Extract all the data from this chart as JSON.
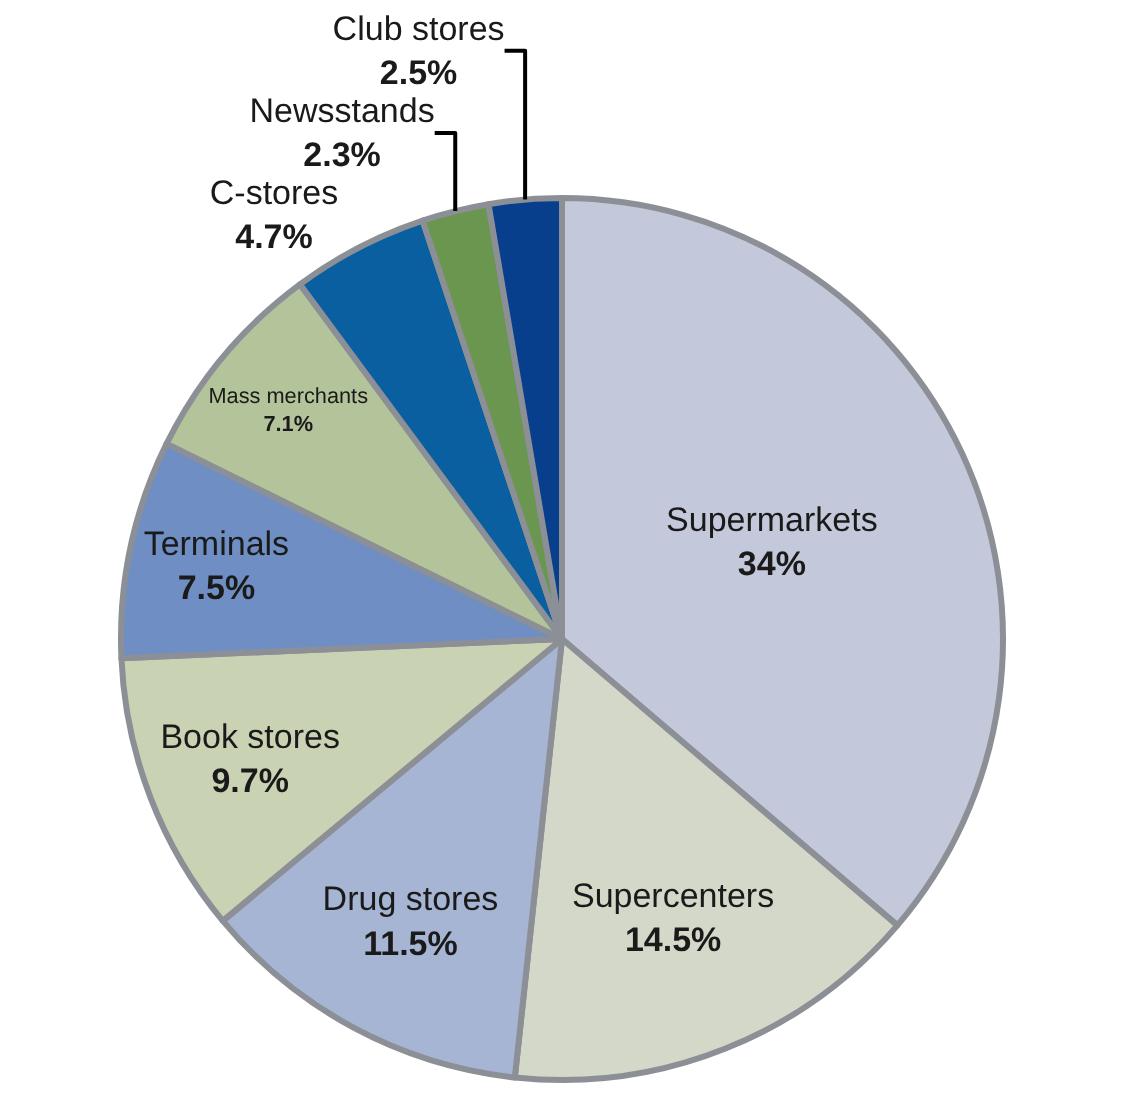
{
  "chart_data": {
    "type": "pie",
    "categories": [
      "Supermarkets",
      "Supercenters",
      "Drug stores",
      "Book stores",
      "Terminals",
      "Mass merchants",
      "C-stores",
      "Newsstands",
      "Club stores"
    ],
    "values": [
      34,
      14.5,
      11.5,
      9.7,
      7.5,
      7.1,
      4.7,
      2.3,
      2.5
    ],
    "value_labels": [
      "34%",
      "14.5%",
      "11.5%",
      "9.7%",
      "7.5%",
      "7.1%",
      "4.7%",
      "2.3%",
      "2.5%"
    ],
    "colors": [
      "#c3c9da",
      "#d3d8c9",
      "#a6b5d4",
      "#c9d3b3",
      "#6f8fc4",
      "#b3c49a",
      "#0a5fa0",
      "#6a9650",
      "#083f8c"
    ],
    "legend": false
  }
}
